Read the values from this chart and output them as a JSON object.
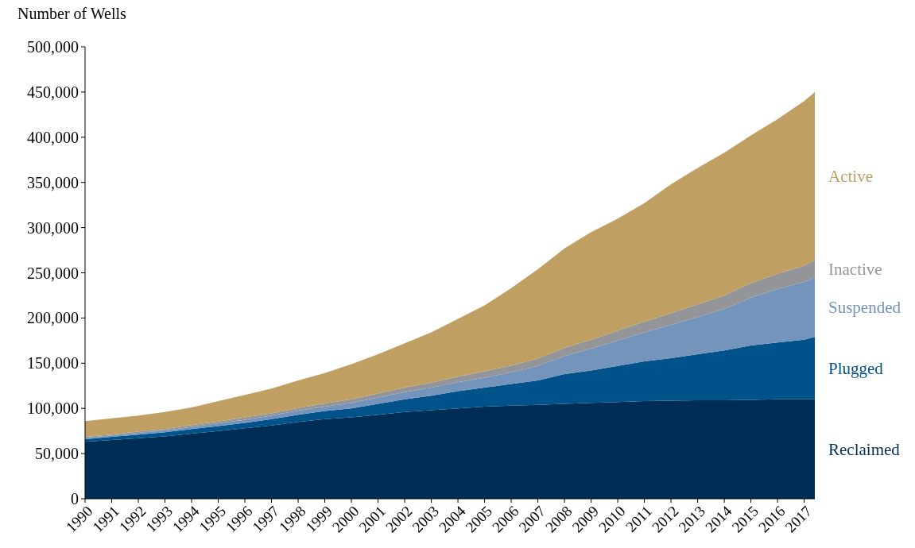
{
  "chart_data": {
    "type": "area",
    "stacked": true,
    "ylabel": "Number of Wells",
    "x": [
      1990,
      1991,
      1992,
      1993,
      1994,
      1995,
      1996,
      1997,
      1998,
      1999,
      2000,
      2001,
      2002,
      2003,
      2004,
      2005,
      2006,
      2007,
      2008,
      2009,
      2010,
      2011,
      2012,
      2013,
      2014,
      2015,
      2016,
      2017,
      2017.4
    ],
    "xlim": [
      1990,
      2017.4
    ],
    "xticks": [
      1990,
      1991,
      1992,
      1993,
      1994,
      1995,
      1996,
      1997,
      1998,
      1999,
      2000,
      2001,
      2002,
      2003,
      2004,
      2005,
      2006,
      2007,
      2008,
      2009,
      2010,
      2011,
      2012,
      2013,
      2014,
      2015,
      2016,
      2017
    ],
    "ylim": [
      0,
      500000
    ],
    "yticks": [
      {
        "value": 0,
        "label": "0"
      },
      {
        "value": 50000,
        "label": "50,000"
      },
      {
        "value": 100000,
        "label": "100,000"
      },
      {
        "value": 150000,
        "label": "150,000"
      },
      {
        "value": 200000,
        "label": "200,000"
      },
      {
        "value": 250000,
        "label": "250,000"
      },
      {
        "value": 300000,
        "label": "300,000"
      },
      {
        "value": 350000,
        "label": "350,000"
      },
      {
        "value": 400000,
        "label": "400,000"
      },
      {
        "value": 450000,
        "label": "450,000"
      },
      {
        "value": 500000,
        "label": "500,000"
      }
    ],
    "grid": false,
    "legend": "right",
    "series": [
      {
        "name": "Reclaimed",
        "color": "#002d55",
        "values": [
          63000,
          65000,
          67000,
          69000,
          72000,
          75000,
          78000,
          81000,
          85000,
          88000,
          90000,
          93000,
          96000,
          98000,
          100000,
          102000,
          103000,
          104000,
          105000,
          106000,
          107000,
          108000,
          108500,
          109000,
          109000,
          109500,
          110000,
          110000,
          110000
        ]
      },
      {
        "name": "Plugged",
        "color": "#00538a",
        "values": [
          3000,
          3500,
          4000,
          4500,
          5000,
          5500,
          6000,
          7000,
          8000,
          9000,
          10000,
          12000,
          14000,
          16000,
          19000,
          21000,
          24000,
          27000,
          33000,
          36000,
          40000,
          44000,
          47000,
          51000,
          55000,
          60000,
          63000,
          66000,
          69000
        ]
      },
      {
        "name": "Suspended",
        "color": "#7594bc",
        "values": [
          1500,
          1500,
          2000,
          2000,
          2500,
          3000,
          3500,
          4000,
          4500,
          5000,
          6000,
          7000,
          8000,
          9000,
          10000,
          11000,
          13000,
          16000,
          20000,
          24000,
          28000,
          32000,
          37000,
          41000,
          46000,
          53000,
          59000,
          64000,
          66000
        ]
      },
      {
        "name": "Inactive",
        "color": "#939598",
        "values": [
          1000,
          1000,
          1500,
          1500,
          2000,
          2000,
          2500,
          2500,
          3000,
          3500,
          4000,
          4500,
          5000,
          5500,
          6000,
          7000,
          7500,
          8000,
          9000,
          10000,
          11000,
          12000,
          13000,
          14000,
          15000,
          16000,
          17000,
          18000,
          19000
        ]
      },
      {
        "name": "Active",
        "color": "#c0a062",
        "values": [
          17500,
          18000,
          17500,
          19000,
          19500,
          22500,
          25000,
          27500,
          30500,
          33500,
          39000,
          43500,
          49000,
          55500,
          64000,
          73000,
          85500,
          99000,
          110000,
          119000,
          124000,
          131000,
          142500,
          151000,
          158000,
          163500,
          171000,
          182000,
          186000
        ]
      }
    ]
  }
}
